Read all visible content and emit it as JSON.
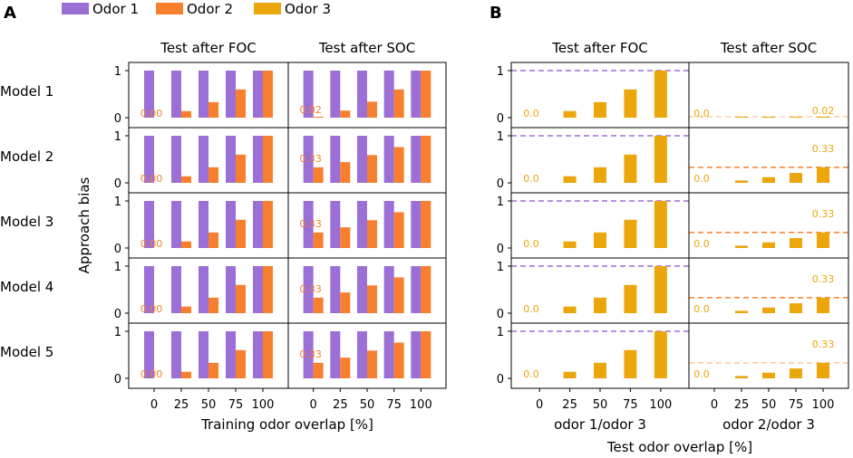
{
  "legend": [
    {
      "label": "Odor 1",
      "color": "#9b6fd6"
    },
    {
      "label": "Odor 2",
      "color": "#f77f2e"
    },
    {
      "label": "Odor 3",
      "color": "#eaa60b"
    }
  ],
  "chart_data": [
    {
      "panel": "A",
      "type": "bar",
      "columns": [
        "Test after FOC",
        "Test after SOC"
      ],
      "rows": [
        "Model 1",
        "Model 2",
        "Model 3",
        "Model 4",
        "Model 5"
      ],
      "categories": [
        "0",
        "25",
        "50",
        "75",
        "100"
      ],
      "xlabel": "Training odor overlap [%]",
      "ylabel": "Approach bias",
      "yticks": [
        "0",
        "1"
      ],
      "ylim": [
        -0.15,
        1.15
      ],
      "series": [
        {
          "name": "Odor 1",
          "values": [
            1,
            1,
            1,
            1,
            1
          ]
        },
        {
          "name": "Odor 2",
          "values_foc": [
            0,
            0.14,
            0.33,
            0.6,
            1
          ],
          "values_soc": [
            [
              0.02,
              0.15,
              0.34,
              0.6,
              1
            ],
            [
              0.33,
              0.44,
              0.59,
              0.76,
              1
            ],
            [
              0.33,
              0.44,
              0.59,
              0.76,
              1
            ],
            [
              0.33,
              0.44,
              0.59,
              0.76,
              1
            ],
            [
              0.33,
              0.44,
              0.59,
              0.76,
              1
            ]
          ]
        }
      ],
      "annotations_foc": [
        "0.00",
        "0.00",
        "0.00",
        "0.00",
        "0.00"
      ],
      "annotations_soc": [
        "0.02",
        "0.33",
        "0.33",
        "0.33",
        "0.33"
      ]
    },
    {
      "panel": "B",
      "type": "bar",
      "columns": [
        "Test after FOC",
        "Test after SOC"
      ],
      "column_xlabels": [
        "odor 1/odor 3",
        "odor 2/odor 3"
      ],
      "categories": [
        "0",
        "25",
        "50",
        "75",
        "100"
      ],
      "xlabel": "Test odor overlap [%]",
      "yticks": [
        "0",
        "1"
      ],
      "ylim": [
        -0.15,
        1.15
      ],
      "series": [
        {
          "name": "Odor 3",
          "values_foc": [
            0,
            0.14,
            0.33,
            0.6,
            1
          ],
          "values_soc": [
            [
              0,
              0.003,
              0.007,
              0.012,
              0.02
            ],
            [
              0,
              0.05,
              0.12,
              0.21,
              0.33
            ],
            [
              0,
              0.05,
              0.12,
              0.21,
              0.33
            ],
            [
              0,
              0.05,
              0.12,
              0.21,
              0.33
            ],
            [
              0,
              0.05,
              0.12,
              0.21,
              0.33
            ]
          ]
        }
      ],
      "reference_foc": 1,
      "reference_soc": [
        0.02,
        0.33,
        0.33,
        0.33,
        0.33
      ],
      "annotations_foc": [
        "0.0",
        "0.0",
        "0.0",
        "0.0",
        "0.0"
      ],
      "annotations_soc_zero": [
        "0.0",
        "0.0",
        "0.0",
        "0.0",
        "0.0"
      ],
      "annotations_soc_max": [
        "0.02",
        "0.33",
        "0.33",
        "0.33",
        "0.33"
      ]
    }
  ],
  "panel_labels": [
    "A",
    "B"
  ]
}
